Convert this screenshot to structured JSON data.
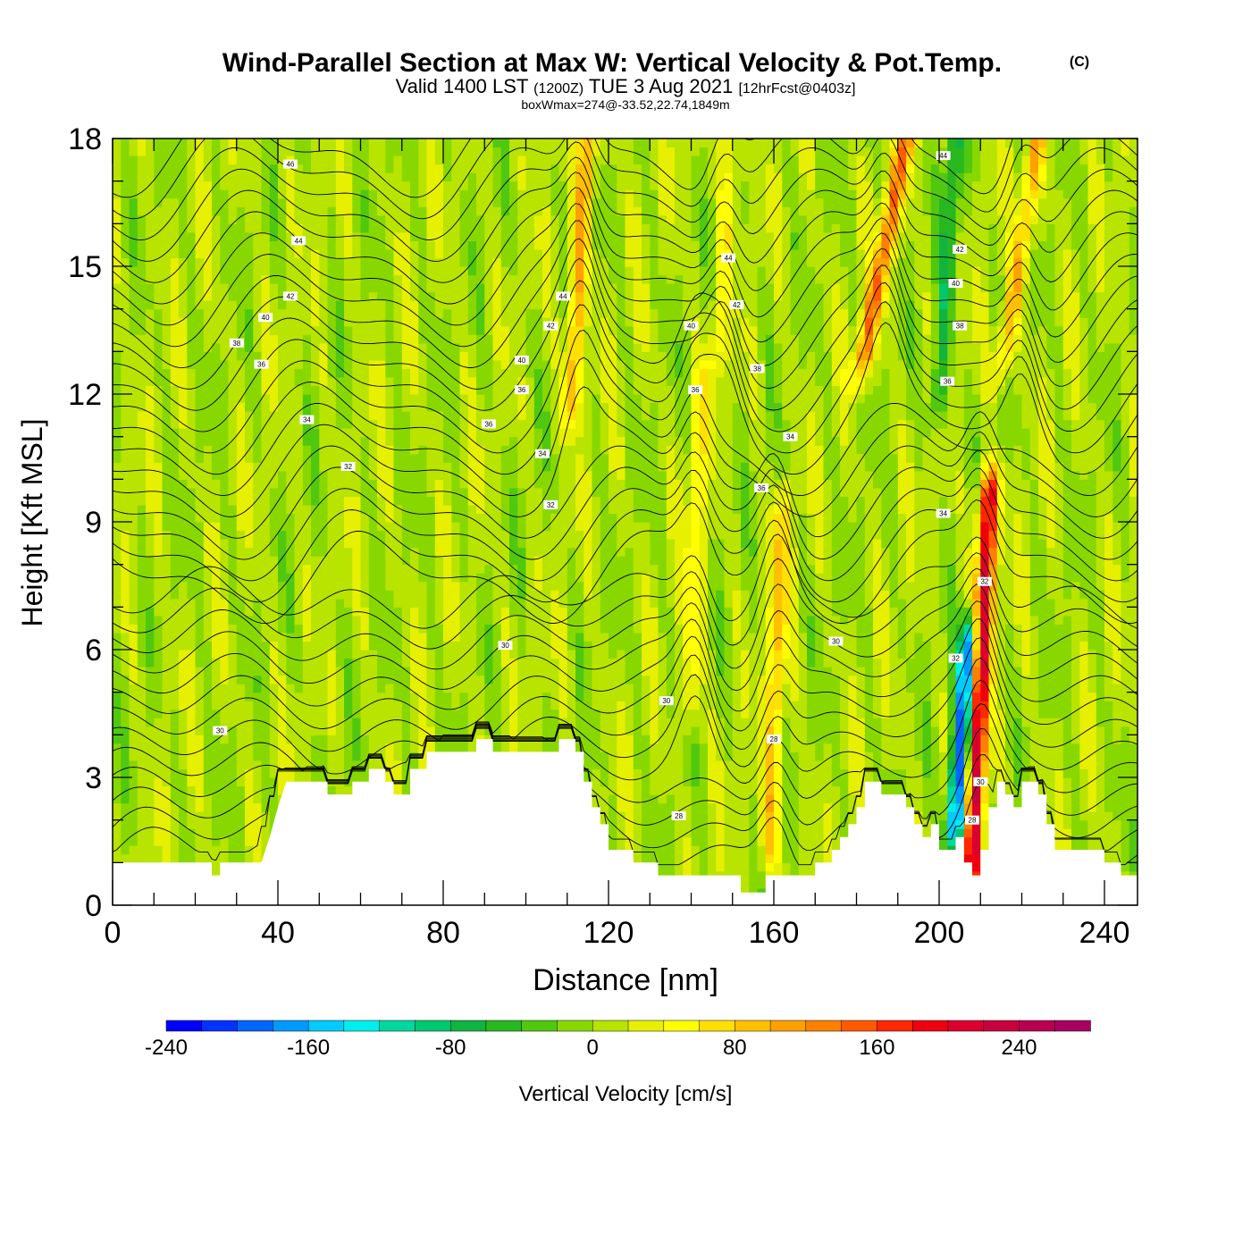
{
  "header": {
    "title": "Wind-Parallel Section at Max W: Vertical Velocity & Pot.Temp.",
    "copyright": "(C)",
    "valid_prefix": "Valid 1400 LST",
    "valid_utc": "(1200Z)",
    "valid_date": "TUE 3 Aug 2021",
    "forecast": "[12hrFcst@0403z]",
    "box_wmax": "boxWmax=274@-33.52,22.74,1849m"
  },
  "chart_data": {
    "type": "heatmap",
    "xlabel": "Distance [nm]",
    "ylabel": "Height [Kft MSL]",
    "xlim": [
      0,
      248
    ],
    "ylim": [
      0,
      18
    ],
    "x_ticks": [
      0,
      40,
      80,
      120,
      160,
      200,
      240
    ],
    "y_ticks": [
      0,
      3,
      6,
      9,
      12,
      15,
      18
    ],
    "colorbar": {
      "label": "Vertical Velocity [cm/s]",
      "min": -240,
      "max": 280,
      "step": 20,
      "tick_values": [
        -240,
        -160,
        -80,
        0,
        80,
        160,
        240
      ],
      "tick_labels": [
        "-240",
        "-160",
        "-80",
        "0",
        "80",
        "160",
        "240"
      ],
      "colors": [
        "#0000ff",
        "#0033ff",
        "#0066ff",
        "#0099ff",
        "#00ccff",
        "#00eeee",
        "#00d8a0",
        "#00c870",
        "#10b440",
        "#28b820",
        "#50c810",
        "#88d800",
        "#b8e400",
        "#e6f000",
        "#ffff00",
        "#ffe000",
        "#ffc000",
        "#ffa000",
        "#ff8000",
        "#ff5a00",
        "#ff2800",
        "#ee0010",
        "#dc0030",
        "#c80040",
        "#b80050",
        "#a80060"
      ]
    },
    "updrafts": [
      {
        "x0": 115.0,
        "x1": 111.0,
        "z0": 18.0,
        "z1": 12.0,
        "w": 100
      },
      {
        "x0": 192.0,
        "x1": 182.0,
        "z0": 18.0,
        "z1": 13.0,
        "w": 130
      },
      {
        "x0": 224.0,
        "x1": 216.0,
        "z0": 18.0,
        "z1": 13.0,
        "w": 90
      },
      {
        "x0": 212.0,
        "x1": 208.0,
        "z0": 9.5,
        "z1": 1.0,
        "w": 220
      },
      {
        "x0": 162.0,
        "x1": 159.0,
        "z0": 9.0,
        "z1": 1.5,
        "w": 80
      },
      {
        "x0": 142.0,
        "x1": 140.0,
        "z0": 12.0,
        "z1": 5.0,
        "w": 50
      },
      {
        "x0": 150.0,
        "x1": 146.0,
        "z0": 18.0,
        "z1": 13.0,
        "w": 50
      }
    ],
    "downdrafts": [
      {
        "x0": 207.0,
        "x1": 204.0,
        "z0": 6.0,
        "z1": 2.0,
        "w": -210
      },
      {
        "x0": 204.0,
        "x1": 200.0,
        "z0": 18.0,
        "z1": 12.0,
        "w": -70
      }
    ],
    "terrain": {
      "x": [
        0,
        24,
        24,
        26,
        26,
        36,
        38,
        40,
        42,
        44,
        46,
        52,
        52,
        58,
        58,
        62,
        62,
        66,
        66,
        68,
        68,
        72,
        72,
        76,
        76,
        88,
        88,
        92,
        92,
        108,
        108,
        112,
        112,
        114,
        114,
        116,
        116,
        118,
        118,
        120,
        120,
        126,
        126,
        132,
        132,
        152,
        152,
        158,
        158,
        170,
        170,
        174,
        174,
        176,
        176,
        178,
        178,
        180,
        180,
        182,
        182,
        186,
        186,
        192,
        192,
        194,
        194,
        196,
        196,
        198,
        198,
        200,
        200,
        204,
        204,
        206,
        206,
        208,
        208,
        210,
        210,
        212,
        212,
        214,
        214,
        216,
        216,
        218,
        218,
        220,
        220,
        224,
        224,
        226,
        226,
        228,
        228,
        240,
        240,
        244,
        244,
        248
      ],
      "z": [
        1.0,
        1.0,
        0.7,
        0.7,
        1.0,
        1.0,
        1.6,
        2.3,
        2.9,
        2.9,
        2.9,
        2.9,
        2.6,
        2.6,
        2.9,
        2.9,
        3.2,
        3.2,
        2.9,
        2.9,
        2.6,
        2.6,
        3.2,
        3.2,
        3.6,
        3.6,
        3.9,
        3.9,
        3.6,
        3.6,
        3.9,
        3.9,
        3.6,
        3.6,
        2.9,
        2.9,
        2.3,
        2.3,
        1.9,
        1.9,
        1.3,
        1.3,
        1.0,
        1.0,
        0.7,
        0.7,
        0.3,
        0.3,
        0.7,
        0.7,
        1.0,
        1.0,
        1.3,
        1.3,
        1.6,
        1.6,
        1.9,
        1.9,
        2.3,
        2.3,
        2.9,
        2.9,
        2.6,
        2.6,
        2.3,
        2.3,
        1.9,
        1.9,
        1.6,
        1.6,
        1.9,
        1.9,
        1.3,
        1.3,
        1.6,
        1.6,
        1.0,
        1.0,
        0.7,
        0.7,
        1.3,
        1.3,
        2.3,
        2.3,
        2.9,
        2.9,
        2.6,
        2.6,
        2.3,
        2.3,
        2.9,
        2.9,
        2.6,
        2.6,
        1.9,
        1.9,
        1.3,
        1.3,
        1.0,
        1.0,
        0.7,
        0.7
      ]
    },
    "theta_contours": [
      {
        "label": "28",
        "label_pos": [
          137,
          2.1
        ]
      },
      {
        "label": "28",
        "label_pos": [
          160,
          3.9
        ]
      },
      {
        "label": "28",
        "label_pos": [
          208,
          2.0
        ]
      },
      {
        "label": "30",
        "label_pos": [
          26,
          4.1
        ]
      },
      {
        "label": "30",
        "label_pos": [
          95,
          6.1
        ]
      },
      {
        "label": "30",
        "label_pos": [
          134,
          4.8
        ]
      },
      {
        "label": "30",
        "label_pos": [
          175,
          6.2
        ]
      },
      {
        "label": "30",
        "label_pos": [
          210,
          2.9
        ]
      },
      {
        "label": "32",
        "label_pos": [
          57,
          10.3
        ]
      },
      {
        "label": "32",
        "label_pos": [
          106,
          9.4
        ]
      },
      {
        "label": "32",
        "label_pos": [
          211,
          7.6
        ]
      },
      {
        "label": "32",
        "label_pos": [
          204,
          5.8
        ]
      },
      {
        "label": "34",
        "label_pos": [
          47,
          11.4
        ]
      },
      {
        "label": "34",
        "label_pos": [
          104,
          10.6
        ]
      },
      {
        "label": "34",
        "label_pos": [
          164,
          11.0
        ]
      },
      {
        "label": "34",
        "label_pos": [
          201,
          9.2
        ]
      },
      {
        "label": "36",
        "label_pos": [
          36,
          12.7
        ]
      },
      {
        "label": "36",
        "label_pos": [
          91,
          11.3
        ]
      },
      {
        "label": "36",
        "label_pos": [
          99,
          12.1
        ]
      },
      {
        "label": "36",
        "label_pos": [
          141,
          12.1
        ]
      },
      {
        "label": "36",
        "label_pos": [
          157,
          9.8
        ]
      },
      {
        "label": "36",
        "label_pos": [
          202,
          12.3
        ]
      },
      {
        "label": "38",
        "label_pos": [
          30,
          13.2
        ]
      },
      {
        "label": "38",
        "label_pos": [
          156,
          12.6
        ]
      },
      {
        "label": "38",
        "label_pos": [
          205,
          13.6
        ]
      },
      {
        "label": "40",
        "label_pos": [
          37,
          13.8
        ]
      },
      {
        "label": "40",
        "label_pos": [
          99,
          12.8
        ]
      },
      {
        "label": "40",
        "label_pos": [
          140,
          13.6
        ]
      },
      {
        "label": "40",
        "label_pos": [
          204,
          14.6
        ]
      },
      {
        "label": "42",
        "label_pos": [
          43,
          14.3
        ]
      },
      {
        "label": "42",
        "label_pos": [
          106,
          13.6
        ]
      },
      {
        "label": "42",
        "label_pos": [
          151,
          14.1
        ]
      },
      {
        "label": "42",
        "label_pos": [
          205,
          15.4
        ]
      },
      {
        "label": "44",
        "label_pos": [
          45,
          15.6
        ]
      },
      {
        "label": "44",
        "label_pos": [
          109,
          14.3
        ]
      },
      {
        "label": "44",
        "label_pos": [
          149,
          15.2
        ]
      },
      {
        "label": "44",
        "label_pos": [
          201,
          17.6
        ]
      },
      {
        "label": "46",
        "label_pos": [
          43,
          17.4
        ]
      }
    ]
  }
}
